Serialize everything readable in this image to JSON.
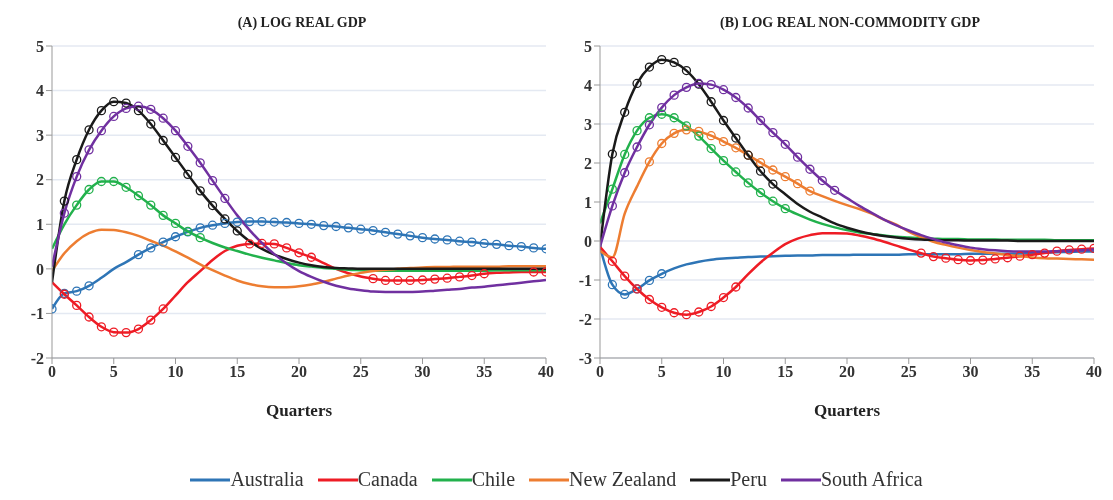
{
  "chart_data": [
    {
      "type": "line",
      "title": "(A) LOG REAL GDP",
      "xlabel": "Quarters",
      "xlim": [
        0,
        40
      ],
      "xticks": [
        0,
        5,
        10,
        15,
        20,
        25,
        30,
        35,
        40
      ],
      "ylim": [
        -2,
        5
      ],
      "yticks": [
        -2,
        -1,
        0,
        1,
        2,
        3,
        4,
        5
      ],
      "grid": "y",
      "legend": "bottom",
      "x": [
        0,
        1,
        2,
        3,
        4,
        5,
        6,
        7,
        8,
        9,
        10,
        11,
        12,
        13,
        14,
        15,
        16,
        17,
        18,
        19,
        20,
        21,
        22,
        23,
        24,
        25,
        26,
        27,
        28,
        29,
        30,
        31,
        32,
        33,
        34,
        35,
        36,
        37,
        38,
        39,
        40
      ],
      "series": [
        {
          "name": "Australia",
          "color": "#2e75b6",
          "values": [
            -0.9,
            -0.55,
            -0.5,
            -0.38,
            -0.2,
            0.0,
            0.15,
            0.32,
            0.47,
            0.6,
            0.72,
            0.83,
            0.92,
            0.98,
            1.02,
            1.05,
            1.06,
            1.06,
            1.05,
            1.04,
            1.02,
            1.0,
            0.97,
            0.95,
            0.92,
            0.89,
            0.86,
            0.82,
            0.78,
            0.74,
            0.7,
            0.67,
            0.65,
            0.62,
            0.6,
            0.57,
            0.55,
            0.52,
            0.5,
            0.47,
            0.45
          ]
        },
        {
          "name": "Canada",
          "color": "#ee1c25",
          "values": [
            -0.3,
            -0.57,
            -0.82,
            -1.08,
            -1.3,
            -1.42,
            -1.43,
            -1.35,
            -1.15,
            -0.9,
            -0.6,
            -0.3,
            -0.05,
            0.2,
            0.4,
            0.52,
            0.56,
            0.57,
            0.56,
            0.47,
            0.36,
            0.26,
            0.13,
            0.0,
            -0.1,
            -0.17,
            -0.22,
            -0.26,
            -0.26,
            -0.26,
            -0.25,
            -0.23,
            -0.21,
            -0.18,
            -0.15,
            -0.11,
            -0.09,
            -0.08,
            -0.07,
            -0.07,
            -0.07
          ]
        },
        {
          "name": "Chile",
          "color": "#22b14c",
          "values": [
            0.45,
            1.0,
            1.43,
            1.78,
            1.96,
            1.96,
            1.83,
            1.64,
            1.43,
            1.2,
            1.02,
            0.84,
            0.7,
            0.58,
            0.48,
            0.4,
            0.32,
            0.25,
            0.19,
            0.13,
            0.08,
            0.05,
            0.02,
            0.0,
            -0.02,
            -0.03,
            -0.04,
            -0.04,
            -0.04,
            -0.04,
            -0.04,
            -0.04,
            -0.04,
            -0.04,
            -0.04,
            -0.04,
            -0.03,
            -0.03,
            -0.03,
            -0.03,
            -0.03
          ]
        },
        {
          "name": "New Zealand",
          "color": "#ed7d31",
          "values": [
            -0.05,
            0.35,
            0.62,
            0.8,
            0.88,
            0.87,
            0.82,
            0.74,
            0.63,
            0.52,
            0.39,
            0.25,
            0.1,
            -0.03,
            -0.15,
            -0.26,
            -0.34,
            -0.39,
            -0.41,
            -0.41,
            -0.39,
            -0.35,
            -0.29,
            -0.22,
            -0.15,
            -0.09,
            -0.05,
            -0.02,
            0.0,
            0.02,
            0.03,
            0.04,
            0.04,
            0.05,
            0.05,
            0.05,
            0.05,
            0.06,
            0.06,
            0.06,
            0.06
          ]
        },
        {
          "name": "Peru",
          "color": "#1a1a1a",
          "values": [
            -0.3,
            1.52,
            2.45,
            3.12,
            3.55,
            3.75,
            3.72,
            3.55,
            3.25,
            2.88,
            2.5,
            2.12,
            1.75,
            1.42,
            1.12,
            0.85,
            0.62,
            0.45,
            0.32,
            0.22,
            0.14,
            0.08,
            0.04,
            0.02,
            0.01,
            0.0,
            0.0,
            0.0,
            0.0,
            0.0,
            0.0,
            0.0,
            0.0,
            0.0,
            0.0,
            0.0,
            0.0,
            0.0,
            0.0,
            0.0,
            0.0
          ]
        },
        {
          "name": "South Africa",
          "color": "#7030a0",
          "values": [
            0.05,
            1.25,
            2.07,
            2.67,
            3.1,
            3.42,
            3.6,
            3.65,
            3.58,
            3.38,
            3.1,
            2.75,
            2.38,
            1.98,
            1.58,
            1.2,
            0.87,
            0.58,
            0.33,
            0.12,
            -0.05,
            -0.18,
            -0.29,
            -0.38,
            -0.44,
            -0.48,
            -0.51,
            -0.52,
            -0.52,
            -0.52,
            -0.51,
            -0.49,
            -0.47,
            -0.45,
            -0.42,
            -0.4,
            -0.37,
            -0.34,
            -0.31,
            -0.28,
            -0.25
          ]
        },
        {
          "type": "scatter",
          "marker": "circle",
          "color": "#2e75b6",
          "x": [
            0,
            1,
            2,
            3,
            7,
            8,
            9,
            10,
            11,
            12,
            13,
            14,
            15,
            16,
            17,
            18,
            19,
            20,
            21,
            22,
            23,
            24,
            25,
            26,
            27,
            28,
            29,
            30,
            31,
            32,
            33,
            34,
            35,
            36,
            37,
            38,
            39,
            40
          ],
          "values": [
            -0.9,
            -0.55,
            -0.5,
            -0.38,
            0.32,
            0.47,
            0.6,
            0.72,
            0.83,
            0.92,
            0.98,
            1.02,
            1.05,
            1.06,
            1.06,
            1.05,
            1.04,
            1.02,
            1.0,
            0.97,
            0.95,
            0.92,
            0.89,
            0.86,
            0.82,
            0.78,
            0.74,
            0.7,
            0.67,
            0.65,
            0.62,
            0.6,
            0.57,
            0.55,
            0.52,
            0.5,
            0.47,
            0.45
          ]
        },
        {
          "type": "scatter",
          "marker": "circle",
          "color": "#ee1c25",
          "x": [
            1,
            2,
            3,
            4,
            5,
            6,
            7,
            8,
            9,
            16,
            17,
            18,
            19,
            20,
            21,
            26,
            27,
            28,
            29,
            30,
            31,
            32,
            33,
            34,
            35,
            39,
            40
          ],
          "values": [
            -0.57,
            -0.82,
            -1.08,
            -1.3,
            -1.42,
            -1.43,
            -1.35,
            -1.15,
            -0.9,
            0.56,
            0.57,
            0.56,
            0.47,
            0.36,
            0.26,
            -0.22,
            -0.26,
            -0.26,
            -0.26,
            -0.25,
            -0.23,
            -0.21,
            -0.18,
            -0.15,
            -0.11,
            -0.07,
            -0.07
          ]
        },
        {
          "type": "scatter",
          "marker": "circle",
          "color": "#22b14c",
          "x": [
            2,
            3,
            4,
            5,
            6,
            7,
            8,
            9,
            10,
            11,
            12
          ],
          "values": [
            1.43,
            1.78,
            1.96,
            1.96,
            1.83,
            1.64,
            1.43,
            1.2,
            1.02,
            0.84,
            0.7
          ]
        },
        {
          "type": "scatter",
          "marker": "circle",
          "color": "#1a1a1a",
          "x": [
            1,
            2,
            3,
            4,
            5,
            6,
            7,
            8,
            9,
            10,
            11,
            12,
            13,
            14,
            15
          ],
          "values": [
            1.52,
            2.45,
            3.12,
            3.55,
            3.75,
            3.72,
            3.55,
            3.25,
            2.88,
            2.5,
            2.12,
            1.75,
            1.42,
            1.12,
            0.85
          ]
        },
        {
          "type": "scatter",
          "marker": "circle",
          "color": "#7030a0",
          "x": [
            1,
            2,
            3,
            4,
            5,
            6,
            7,
            8,
            9,
            10,
            11,
            12,
            13,
            14
          ],
          "values": [
            1.25,
            2.07,
            2.67,
            3.1,
            3.42,
            3.6,
            3.65,
            3.58,
            3.38,
            3.1,
            2.75,
            2.38,
            1.98,
            1.58
          ]
        }
      ]
    },
    {
      "type": "line",
      "title": "(B) LOG REAL NON-COMMODITY GDP",
      "xlabel": "Quarters",
      "xlim": [
        0,
        40
      ],
      "xticks": [
        0,
        5,
        10,
        15,
        20,
        25,
        30,
        35,
        40
      ],
      "ylim": [
        -3,
        5
      ],
      "yticks": [
        -3,
        -2,
        -1,
        0,
        1,
        2,
        3,
        4,
        5
      ],
      "grid": "y",
      "x": [
        0,
        1,
        2,
        3,
        4,
        5,
        6,
        7,
        8,
        9,
        10,
        11,
        12,
        13,
        14,
        15,
        16,
        17,
        18,
        19,
        20,
        21,
        22,
        23,
        24,
        25,
        26,
        27,
        28,
        29,
        30,
        31,
        32,
        33,
        34,
        35,
        36,
        37,
        38,
        39,
        40
      ],
      "series": [
        {
          "color": "#2e75b6",
          "values": [
            -0.15,
            -1.12,
            -1.37,
            -1.23,
            -1.01,
            -0.84,
            -0.7,
            -0.6,
            -0.53,
            -0.48,
            -0.45,
            -0.43,
            -0.41,
            -0.4,
            -0.39,
            -0.38,
            -0.37,
            -0.37,
            -0.36,
            -0.36,
            -0.36,
            -0.35,
            -0.35,
            -0.35,
            -0.35,
            -0.34,
            -0.34,
            -0.34,
            -0.34,
            -0.34,
            -0.33,
            -0.33,
            -0.33,
            -0.33,
            -0.32,
            -0.31,
            -0.3,
            -0.29,
            -0.28,
            -0.27,
            -0.27
          ]
        },
        {
          "color": "#ee1c25",
          "values": [
            -0.15,
            -0.52,
            -0.9,
            -1.23,
            -1.5,
            -1.7,
            -1.84,
            -1.89,
            -1.82,
            -1.68,
            -1.45,
            -1.18,
            -0.85,
            -0.55,
            -0.3,
            -0.08,
            0.06,
            0.15,
            0.2,
            0.2,
            0.19,
            0.14,
            0.07,
            -0.02,
            -0.12,
            -0.22,
            -0.31,
            -0.4,
            -0.44,
            -0.48,
            -0.5,
            -0.49,
            -0.46,
            -0.43,
            -0.39,
            -0.35,
            -0.31,
            -0.26,
            -0.23,
            -0.21,
            -0.19
          ]
        },
        {
          "color": "#22b14c",
          "values": [
            0.45,
            1.33,
            2.22,
            2.83,
            3.16,
            3.25,
            3.16,
            2.95,
            2.69,
            2.37,
            2.06,
            1.77,
            1.49,
            1.24,
            1.02,
            0.83,
            0.68,
            0.55,
            0.44,
            0.35,
            0.28,
            0.22,
            0.18,
            0.14,
            0.11,
            0.09,
            0.07,
            0.06,
            0.05,
            0.05,
            0.04,
            0.04,
            0.04,
            0.03,
            0.03,
            0.03,
            0.03,
            0.02,
            0.02,
            0.02,
            0.02
          ]
        },
        {
          "color": "#ed7d31",
          "values": [
            -0.25,
            -0.42,
            0.7,
            1.4,
            2.03,
            2.5,
            2.76,
            2.85,
            2.81,
            2.7,
            2.55,
            2.39,
            2.2,
            2.01,
            1.82,
            1.65,
            1.47,
            1.28,
            1.15,
            1.03,
            0.92,
            0.82,
            0.7,
            0.55,
            0.42,
            0.24,
            0.1,
            -0.02,
            -0.1,
            -0.17,
            -0.23,
            -0.28,
            -0.32,
            -0.36,
            -0.39,
            -0.42,
            -0.44,
            -0.45,
            -0.46,
            -0.47,
            -0.48
          ]
        },
        {
          "color": "#1a1a1a",
          "values": [
            -0.15,
            2.23,
            3.3,
            4.04,
            4.46,
            4.65,
            4.58,
            4.37,
            4.02,
            3.57,
            3.09,
            2.64,
            2.2,
            1.79,
            1.46,
            1.2,
            0.95,
            0.75,
            0.6,
            0.45,
            0.34,
            0.25,
            0.18,
            0.13,
            0.09,
            0.06,
            0.04,
            0.03,
            0.02,
            0.02,
            0.01,
            0.01,
            0.01,
            0.01,
            0.0,
            0.0,
            0.0,
            0.0,
            0.0,
            0.0,
            0.0
          ]
        },
        {
          "color": "#7030a0",
          "values": [
            -0.15,
            0.9,
            1.75,
            2.41,
            2.98,
            3.42,
            3.74,
            3.94,
            4.04,
            4.01,
            3.88,
            3.68,
            3.41,
            3.09,
            2.78,
            2.48,
            2.15,
            1.84,
            1.55,
            1.3,
            1.1,
            0.9,
            0.72,
            0.55,
            0.4,
            0.27,
            0.15,
            0.05,
            -0.04,
            -0.11,
            -0.17,
            -0.21,
            -0.24,
            -0.26,
            -0.27,
            -0.27,
            -0.27,
            -0.26,
            -0.25,
            -0.24,
            -0.22
          ]
        },
        {
          "type": "scatter",
          "marker": "circle",
          "color": "#2e75b6",
          "x": [
            1,
            2,
            3,
            4,
            5
          ],
          "values": [
            -1.12,
            -1.37,
            -1.23,
            -1.01,
            -0.84
          ]
        },
        {
          "type": "scatter",
          "marker": "circle",
          "color": "#ee1c25",
          "x": [
            1,
            2,
            3,
            4,
            5,
            6,
            7,
            8,
            9,
            10,
            11,
            26,
            27,
            28,
            29,
            30,
            31,
            32,
            33,
            34,
            35,
            36,
            37,
            38,
            39,
            40
          ],
          "values": [
            -0.52,
            -0.9,
            -1.23,
            -1.5,
            -1.7,
            -1.84,
            -1.89,
            -1.82,
            -1.68,
            -1.45,
            -1.18,
            -0.31,
            -0.4,
            -0.44,
            -0.48,
            -0.5,
            -0.49,
            -0.46,
            -0.43,
            -0.39,
            -0.35,
            -0.31,
            -0.26,
            -0.23,
            -0.21,
            -0.19
          ]
        },
        {
          "type": "scatter",
          "marker": "circle",
          "color": "#22b14c",
          "x": [
            1,
            2,
            3,
            4,
            5,
            6,
            7,
            8,
            9,
            10,
            11,
            12,
            13,
            14,
            15
          ],
          "values": [
            1.33,
            2.22,
            2.83,
            3.16,
            3.25,
            3.16,
            2.95,
            2.69,
            2.37,
            2.06,
            1.77,
            1.49,
            1.24,
            1.02,
            0.83
          ]
        },
        {
          "type": "scatter",
          "marker": "circle",
          "color": "#ed7d31",
          "x": [
            4,
            5,
            6,
            7,
            8,
            9,
            10,
            11,
            12,
            13,
            14,
            15,
            16,
            17
          ],
          "values": [
            2.03,
            2.5,
            2.76,
            2.85,
            2.81,
            2.7,
            2.55,
            2.39,
            2.2,
            2.01,
            1.82,
            1.65,
            1.47,
            1.28
          ]
        },
        {
          "type": "scatter",
          "marker": "circle",
          "color": "#1a1a1a",
          "x": [
            1,
            2,
            3,
            4,
            5,
            6,
            7,
            8,
            9,
            10,
            11,
            12,
            13,
            14
          ],
          "values": [
            2.23,
            3.3,
            4.04,
            4.46,
            4.65,
            4.58,
            4.37,
            4.02,
            3.57,
            3.09,
            2.64,
            2.2,
            1.79,
            1.46
          ]
        },
        {
          "type": "scatter",
          "marker": "circle",
          "color": "#7030a0",
          "x": [
            1,
            2,
            3,
            4,
            5,
            6,
            7,
            8,
            9,
            10,
            11,
            12,
            13,
            14,
            15,
            16,
            17,
            18,
            19
          ],
          "values": [
            0.9,
            1.75,
            2.41,
            2.98,
            3.42,
            3.74,
            3.94,
            4.04,
            4.01,
            3.88,
            3.68,
            3.41,
            3.09,
            2.78,
            2.48,
            2.15,
            1.84,
            1.55,
            1.3
          ]
        }
      ]
    }
  ]
}
